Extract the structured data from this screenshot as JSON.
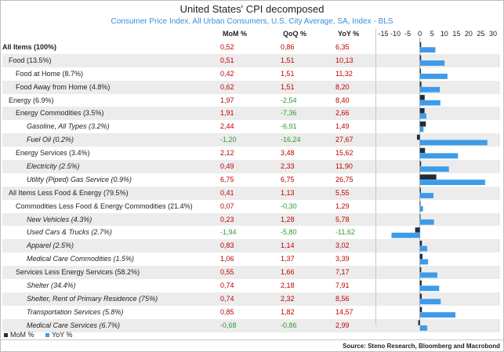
{
  "title": "United States' CPI decomposed",
  "subtitle": "Consumer Price Index, All Urban Consumers, U.S. City Average, SA, Index - BLS",
  "headers": {
    "mom": "MoM %",
    "qoq": "QoQ %",
    "yoy": "YoY %"
  },
  "legend": {
    "mom": "MoM %",
    "yoy": "YoY %"
  },
  "source": "Source: Steno Research, Bloomberg and Macrobond",
  "colors": {
    "mom": "#1f2d3d",
    "yoy": "#3d9be9",
    "positive": "#c00000",
    "negative": "#2e9b2e"
  },
  "chart_data": {
    "type": "bar",
    "orientation": "horizontal",
    "xlim": [
      -15,
      30
    ],
    "x_ticks": [
      "-15",
      "-10",
      "-5",
      "0",
      "5",
      "10",
      "15",
      "20",
      "25",
      "30"
    ],
    "categories": [
      "All Items (100%)",
      "Food (13.5%)",
      "Food at Home (8.7%)",
      "Food Away from Home (4.8%)",
      "Energy (6.9%)",
      "Energy Commodities (3.5%)",
      "Gasoline, All Types (3.2%)",
      "Fuel Oil (0.2%)",
      "Energy Services (3.4%)",
      "Electricity (2.5%)",
      "Utility (Piped) Gas Service (0.9%)",
      "All Items Less Food & Energy (79.5%)",
      "Commodities Less Food & Energy Commodities (21.4%)",
      "New Vehicles (4.3%)",
      "Used Cars & Trucks (2.7%)",
      "Apparel (2.5%)",
      "Medical Care Commodities (1.5%)",
      "Services Less Energy Services (58.2%)",
      "Shelter (34.4%)",
      "Shelter, Rent of Primary Residence (75%)",
      "Transportation Services (5.8%)",
      "Medical Care Services (6.7%)"
    ],
    "series": [
      {
        "name": "MoM %",
        "values": [
          0.52,
          0.51,
          0.42,
          0.62,
          1.97,
          1.91,
          2.44,
          -1.2,
          2.12,
          0.49,
          6.75,
          0.41,
          0.07,
          0.23,
          -1.94,
          0.83,
          1.06,
          0.55,
          0.74,
          0.74,
          0.85,
          -0.68
        ]
      },
      {
        "name": "QoQ %",
        "values": [
          0.86,
          1.51,
          1.51,
          1.51,
          -2.54,
          -7.36,
          -6.91,
          -16.24,
          3.48,
          2.33,
          6.75,
          1.13,
          -0.3,
          1.28,
          -5.8,
          1.14,
          1.37,
          1.66,
          2.18,
          2.32,
          1.82,
          -0.86
        ]
      },
      {
        "name": "YoY %",
        "values": [
          6.35,
          10.13,
          11.32,
          8.2,
          8.4,
          2.66,
          1.49,
          27.67,
          15.62,
          11.9,
          26.75,
          5.55,
          1.29,
          5.78,
          -11.62,
          3.02,
          3.39,
          7.17,
          7.91,
          8.56,
          14.57,
          2.99
        ]
      }
    ],
    "display": {
      "mom": [
        "0,52",
        "0,51",
        "0,42",
        "0,62",
        "1,97",
        "1,91",
        "2,44",
        "-1,20",
        "2,12",
        "0,49",
        "6,75",
        "0,41",
        "0,07",
        "0,23",
        "-1,94",
        "0,83",
        "1,06",
        "0,55",
        "0,74",
        "0,74",
        "0,85",
        "-0,68"
      ],
      "qoq": [
        "0,86",
        "1,51",
        "1,51",
        "1,51",
        "-2,54",
        "-7,36",
        "-6,91",
        "-16,24",
        "3,48",
        "2,33",
        "6,75",
        "1,13",
        "-0,30",
        "1,28",
        "-5,80",
        "1,14",
        "1,37",
        "1,66",
        "2,18",
        "2,32",
        "1,82",
        "-0,86"
      ],
      "yoy": [
        "6,35",
        "10,13",
        "11,32",
        "8,20",
        "8,40",
        "2,66",
        "1,49",
        "27,67",
        "15,62",
        "11,90",
        "26,75",
        "5,55",
        "1,29",
        "5,78",
        "-11,62",
        "3,02",
        "3,39",
        "7,17",
        "7,91",
        "8,56",
        "14,57",
        "2,99"
      ]
    },
    "levels": [
      0,
      1,
      2,
      2,
      1,
      2,
      3,
      3,
      2,
      3,
      3,
      1,
      2,
      3,
      3,
      3,
      3,
      2,
      3,
      3,
      3,
      3
    ],
    "bold_rows": [
      0
    ],
    "grid": false,
    "legend_position": "bottom-left"
  }
}
